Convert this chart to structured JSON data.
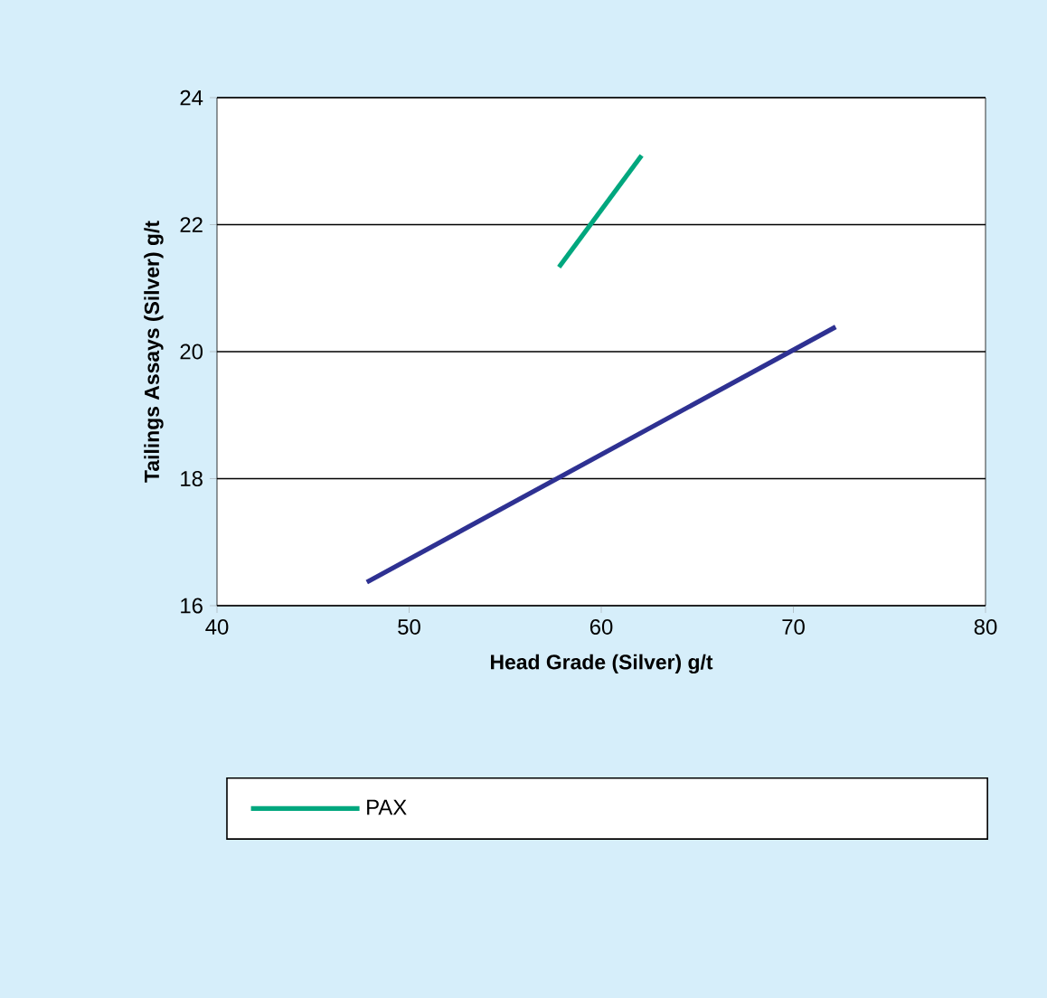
{
  "chart_data": {
    "type": "line",
    "xlabel": "Head Grade (Silver) g/t",
    "ylabel": "Tailings Assays (Silver) g/t",
    "xlim": [
      40,
      80
    ],
    "ylim": [
      16,
      24
    ],
    "xticks": [
      40,
      50,
      60,
      70,
      80
    ],
    "yticks": [
      16,
      18,
      20,
      22,
      24
    ],
    "grid": "y",
    "legend": "bottom",
    "marker": "none",
    "line_style": "solid",
    "series": [
      {
        "color": "#2e3192",
        "x": [
          47.8,
          72.2
        ],
        "values": [
          16.37,
          20.39
        ]
      },
      {
        "name": "PAX",
        "color": "#00a77e",
        "x": [
          57.8,
          62.1
        ],
        "values": [
          21.33,
          23.09
        ]
      }
    ]
  }
}
